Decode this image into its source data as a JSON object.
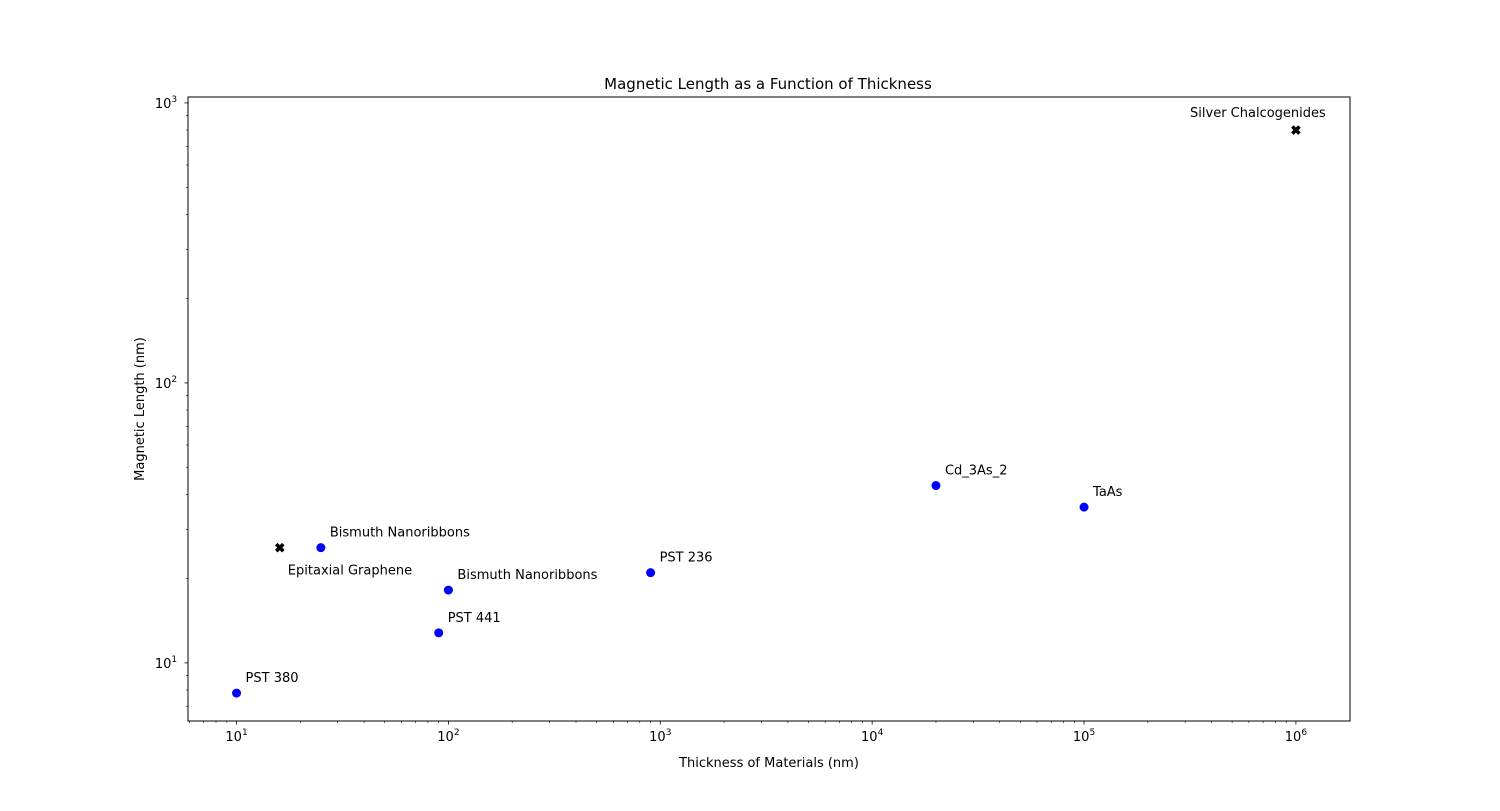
{
  "chart_data": {
    "type": "scatter",
    "title": "Magnetic Length as a Function of Thickness",
    "xlabel": "Thickness of Materials (nm)",
    "ylabel": "Magnetic Length (nm)",
    "xscale": "log",
    "yscale": "log",
    "xlim": [
      5.9,
      1800000
    ],
    "ylim": [
      6.2,
      1050
    ],
    "grid": false,
    "legend": "none",
    "x_ticks": [
      10,
      100,
      1000,
      10000,
      100000,
      1000000
    ],
    "x_tick_labels": [
      [
        "10",
        "1"
      ],
      [
        "10",
        "2"
      ],
      [
        "10",
        "3"
      ],
      [
        "10",
        "4"
      ],
      [
        "10",
        "5"
      ],
      [
        "10",
        "6"
      ]
    ],
    "y_ticks": [
      10,
      100,
      1000
    ],
    "y_tick_labels": [
      [
        "10",
        "1"
      ],
      [
        "10",
        "2"
      ],
      [
        "10",
        "3"
      ]
    ],
    "colors": {
      "circle": "#0000ff",
      "cross": "#000000"
    },
    "points": [
      {
        "x": 10,
        "y": 7.8,
        "label": "PST 380",
        "marker": "circle",
        "label_pos": "above-right"
      },
      {
        "x": 25,
        "y": 25.8,
        "label": "Bismuth Nanoribbons",
        "marker": "circle",
        "label_pos": "above-right"
      },
      {
        "x": 16,
        "y": 25.8,
        "label": "Epitaxial Graphene",
        "marker": "cross",
        "label_pos": "below-right"
      },
      {
        "x": 100,
        "y": 18.2,
        "label": "Bismuth Nanoribbons",
        "marker": "circle",
        "label_pos": "above-right"
      },
      {
        "x": 90,
        "y": 12.8,
        "label": "PST 441",
        "marker": "circle",
        "label_pos": "above-right"
      },
      {
        "x": 900,
        "y": 21,
        "label": "PST 236",
        "marker": "circle",
        "label_pos": "above-right"
      },
      {
        "x": 20000,
        "y": 43,
        "label": "Cd_3As_2",
        "marker": "circle",
        "label_pos": "above-right"
      },
      {
        "x": 100000,
        "y": 36,
        "label": "TaAs",
        "marker": "circle",
        "label_pos": "above-right"
      },
      {
        "x": 1000000,
        "y": 800,
        "label": "Silver Chalcogenides",
        "marker": "cross",
        "label_pos": "above-left"
      }
    ]
  }
}
